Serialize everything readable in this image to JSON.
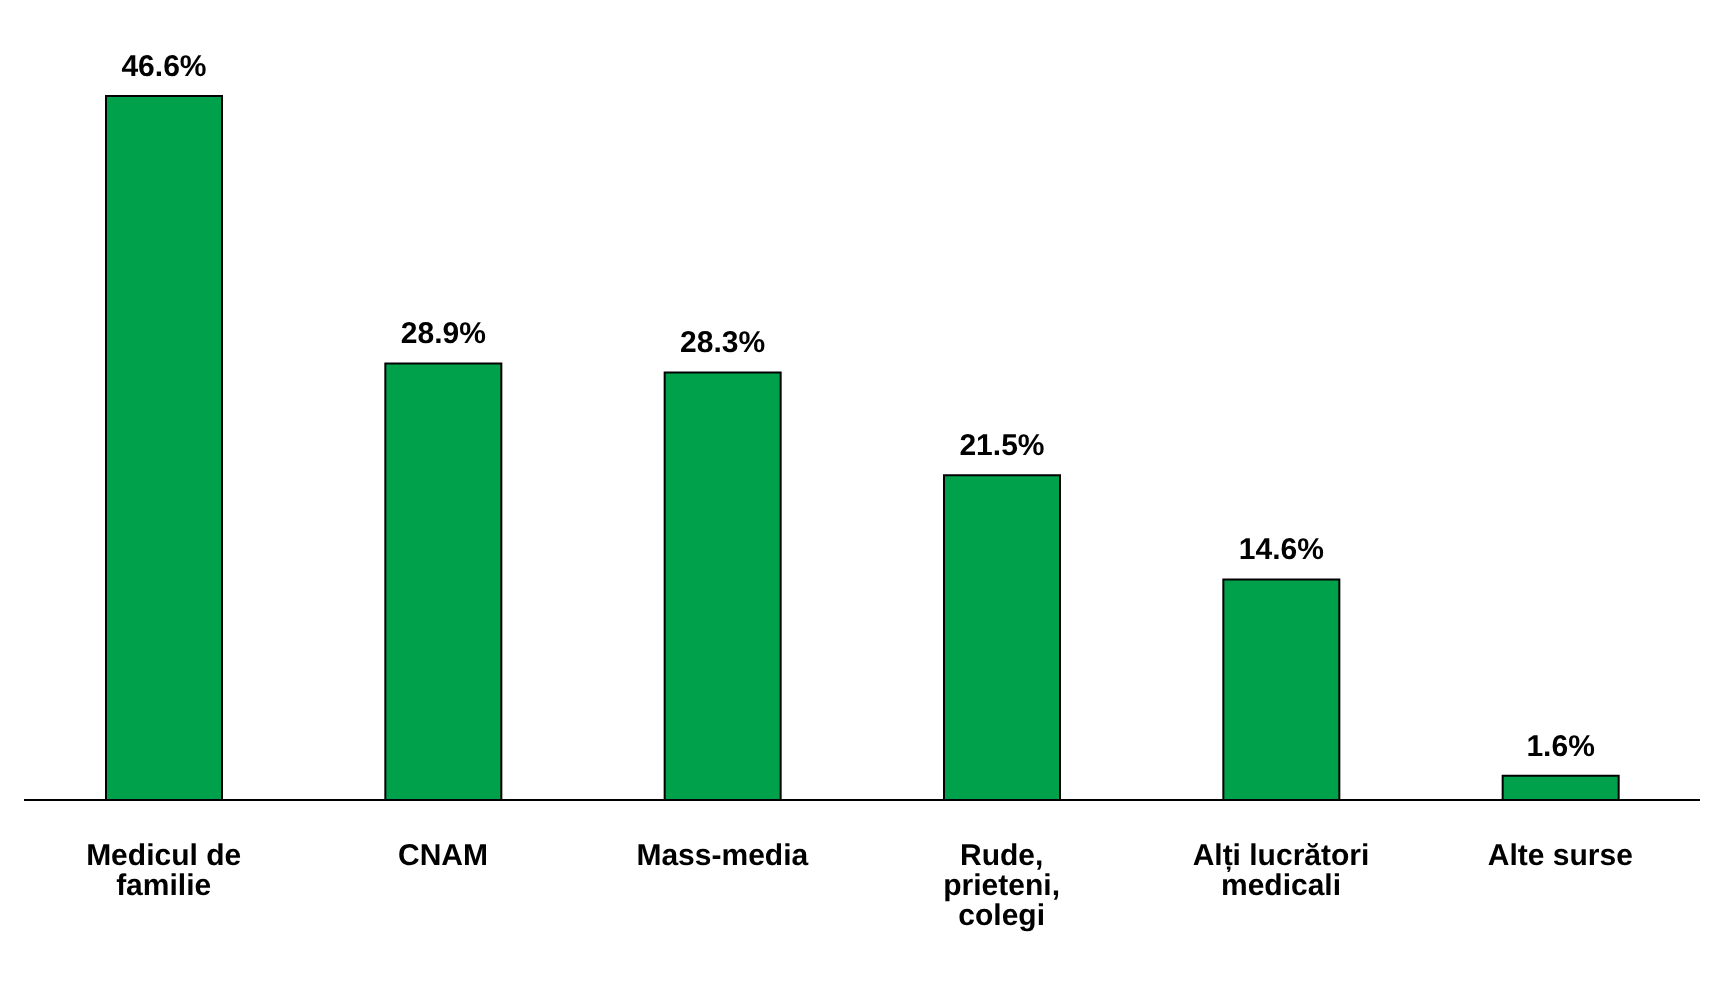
{
  "chart_data": {
    "type": "bar",
    "categories": [
      "Medicul de familie",
      "CNAM",
      "Mass-media",
      "Rude, prieteni, colegi",
      "Alți lucrători medicali",
      "Alte surse"
    ],
    "values": [
      46.6,
      28.9,
      28.3,
      21.5,
      14.6,
      1.6
    ],
    "value_labels": [
      "46.6%",
      "28.9%",
      "28.3%",
      "21.5%",
      "14.6%",
      "1.6%"
    ],
    "color": "#00a14b",
    "grid": false,
    "legend": false
  }
}
